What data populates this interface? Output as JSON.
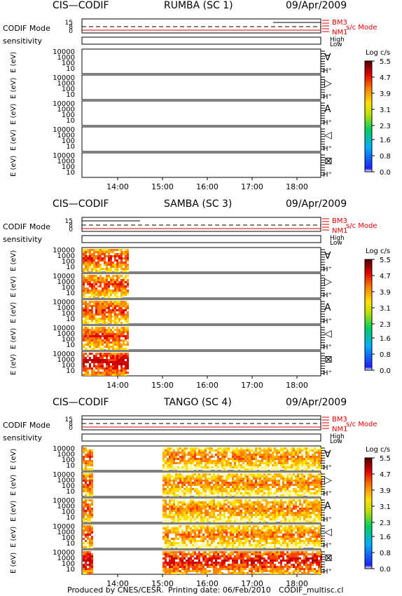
{
  "sections": [
    {
      "instrument": "CIS—CODIF",
      "spacecraft": "RUMBA (SC 1)",
      "date": "09/Apr/2009"
    },
    {
      "instrument": "CIS—CODIF",
      "spacecraft": "SAMBA (SC 3)",
      "date": "09/Apr/2009"
    },
    {
      "instrument": "CIS—CODIF",
      "spacecraft": "TANGO (SC 4)",
      "date": "09/Apr/2009"
    }
  ],
  "mode_panel": {
    "label": "CODIF Mode",
    "ticks": [
      "15",
      "8",
      "0"
    ],
    "modes": [
      "BM3",
      "NM1"
    ],
    "title": "s/c Mode"
  },
  "sensitivity": {
    "label": "sensitivity",
    "levels": [
      "High",
      "Low"
    ]
  },
  "energy_axis": {
    "label": "E (eV)",
    "ticks": [
      "10000",
      "1000",
      "100",
      "10"
    ]
  },
  "directions": [
    "∀",
    "▷",
    "A",
    "◁",
    "⊠"
  ],
  "species": "H⁺",
  "colorbar": {
    "title": "Log c/s",
    "ticks": [
      5.5,
      4.7,
      3.9,
      3.1,
      2.3,
      1.6,
      0.8,
      {
        "value": 0,
        "label": "0.0"
      }
    ]
  },
  "time_ticks": [
    "14:00",
    "15:00",
    "16:00",
    "17:00",
    "18:00"
  ],
  "footer": {
    "produced": "Produced by CNES/CESR.",
    "printing": "Printing date: 06/Feb/2010",
    "file": "CODIF_multisc.cl"
  }
}
